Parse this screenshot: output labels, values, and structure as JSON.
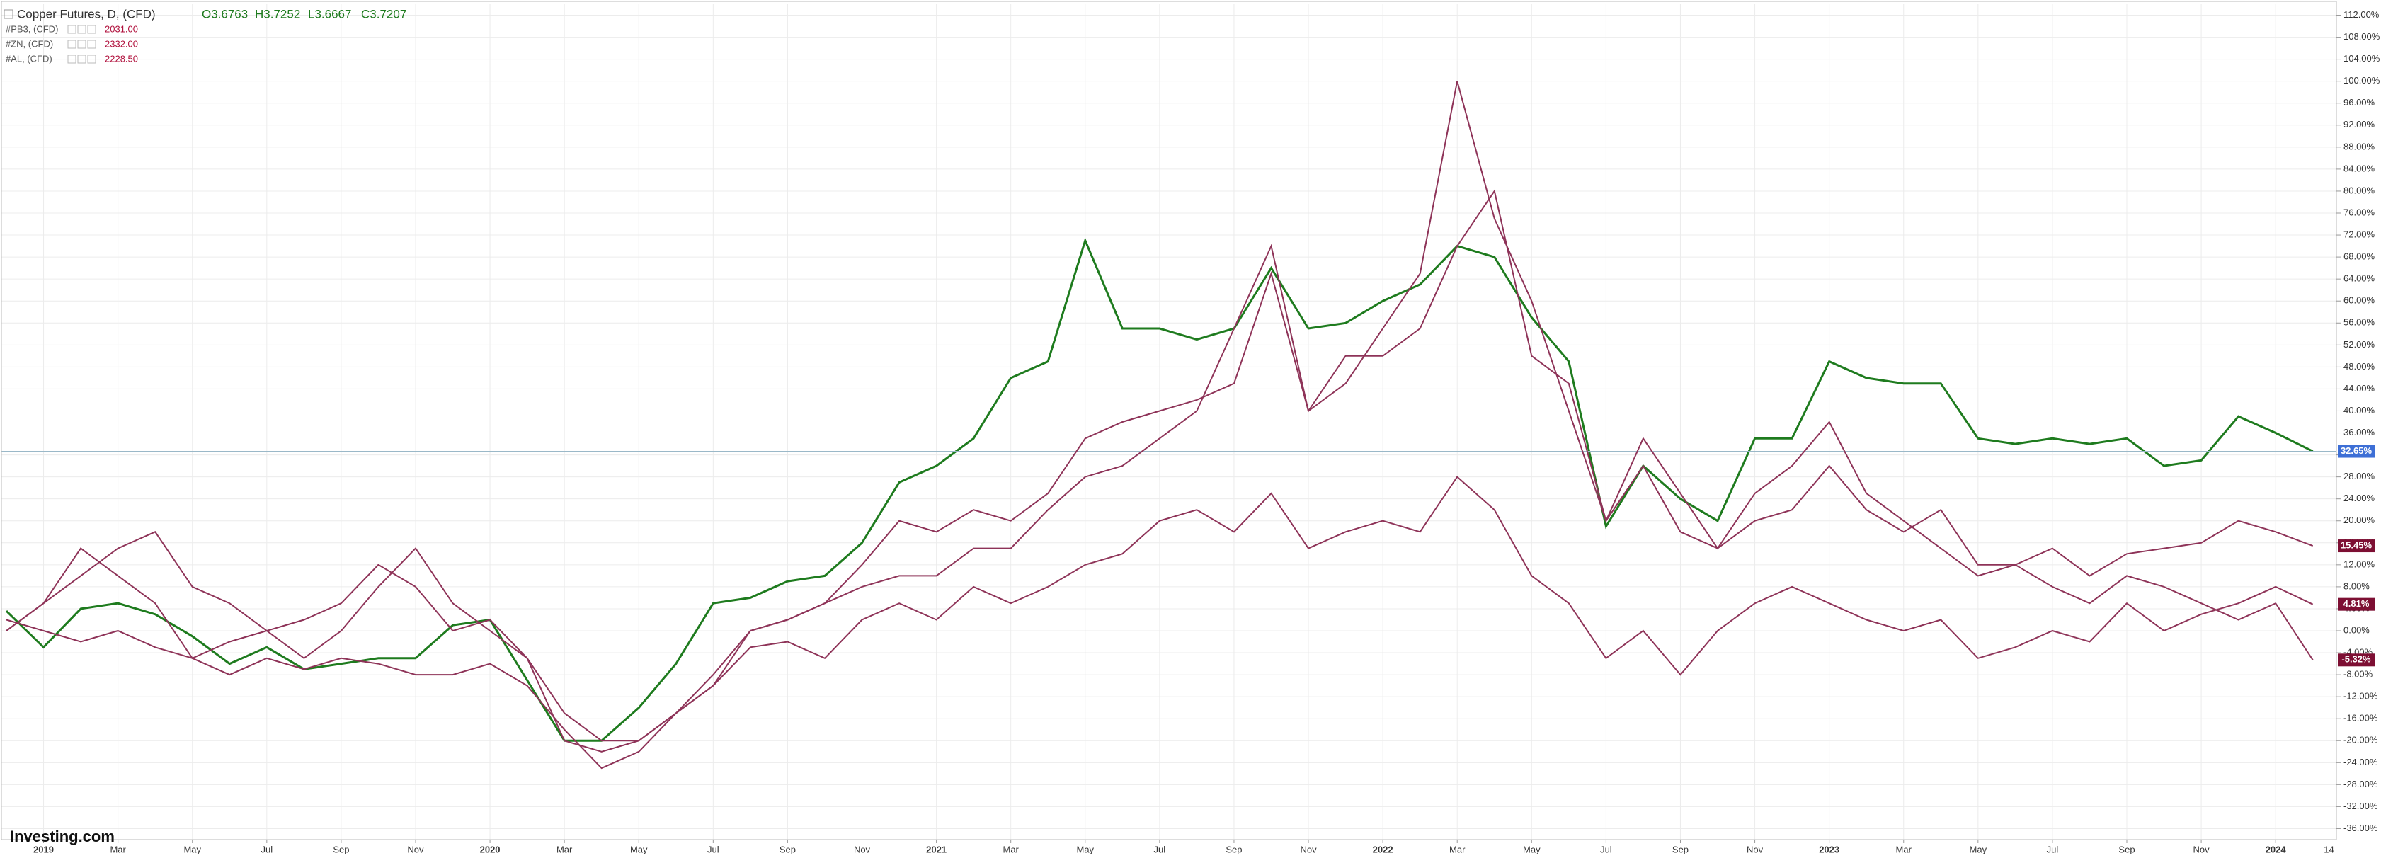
{
  "chart_data": {
    "type": "line",
    "title": "Copper Futures, D, (CFD)",
    "ohlc": [
      "O3.6763",
      "H3.7252",
      "L3.6667",
      "C3.7207"
    ],
    "logo": "Investing.com",
    "x": [
      "2018-12",
      "2019-01",
      "2019-02",
      "2019-03",
      "2019-04",
      "2019-05",
      "2019-06",
      "2019-07",
      "2019-08",
      "2019-09",
      "2019-10",
      "2019-11",
      "2019-12",
      "2020-01",
      "2020-02",
      "2020-03",
      "2020-04",
      "2020-05",
      "2020-06",
      "2020-07",
      "2020-08",
      "2020-09",
      "2020-10",
      "2020-11",
      "2020-12",
      "2021-01",
      "2021-02",
      "2021-03",
      "2021-04",
      "2021-05",
      "2021-06",
      "2021-07",
      "2021-08",
      "2021-09",
      "2021-10",
      "2021-11",
      "2021-12",
      "2022-01",
      "2022-02",
      "2022-03",
      "2022-04",
      "2022-05",
      "2022-06",
      "2022-07",
      "2022-08",
      "2022-09",
      "2022-10",
      "2022-11",
      "2022-12",
      "2023-01",
      "2023-02",
      "2023-03",
      "2023-04",
      "2023-05",
      "2023-06",
      "2023-07",
      "2023-08",
      "2023-09",
      "2023-10",
      "2023-11",
      "2023-12",
      "2024-01",
      "2024-02"
    ],
    "series": [
      {
        "name": "Copper Futures",
        "color": "#1e7b1e",
        "badge_color": "#3d6fd6",
        "last_value_label": "32.65%",
        "values": [
          3.6,
          -3,
          4,
          5,
          3,
          -1,
          -6,
          -3,
          -7,
          -6,
          -5,
          -5,
          1,
          2,
          -9,
          -20,
          -20,
          -14,
          -6,
          5,
          6,
          9,
          10,
          16,
          27,
          30,
          35,
          46,
          49,
          71,
          55,
          55,
          53,
          55,
          66,
          55,
          56,
          60,
          63,
          70,
          68,
          57,
          49,
          19,
          30,
          24,
          20,
          35,
          35,
          49,
          46,
          45,
          45,
          35,
          34,
          35,
          34,
          35,
          30,
          31,
          39,
          36,
          32.65
        ]
      },
      {
        "name": "#PB3, (CFD)",
        "last": "2031.00",
        "color": "#8e3358",
        "badge_color": "#7d0f33",
        "last_value_label": "4.81%",
        "values": [
          0,
          5,
          15,
          10,
          5,
          -5,
          -2,
          0,
          2,
          5,
          12,
          8,
          0,
          2,
          -5,
          -15,
          -20,
          -20,
          -15,
          -10,
          -3,
          -2,
          -5,
          2,
          5,
          2,
          8,
          5,
          8,
          12,
          14,
          20,
          22,
          18,
          25,
          15,
          18,
          20,
          18,
          28,
          22,
          10,
          5,
          -5,
          0,
          -8,
          0,
          5,
          8,
          5,
          2,
          0,
          2,
          -5,
          -3,
          0,
          -2,
          5,
          0,
          3,
          5,
          8,
          4.81
        ]
      },
      {
        "name": "#ZN, (CFD)",
        "last": "2332.00",
        "color": "#8e3358",
        "badge_color": "#7d0f33",
        "last_value_label": "-5.32%",
        "values": [
          0,
          5,
          10,
          15,
          18,
          8,
          5,
          0,
          -5,
          0,
          8,
          15,
          5,
          0,
          -5,
          -20,
          -22,
          -20,
          -15,
          -10,
          0,
          2,
          5,
          12,
          20,
          18,
          22,
          20,
          25,
          35,
          38,
          40,
          42,
          45,
          65,
          40,
          50,
          50,
          55,
          70,
          80,
          50,
          45,
          20,
          35,
          25,
          15,
          25,
          30,
          38,
          25,
          20,
          15,
          10,
          12,
          8,
          5,
          10,
          8,
          5,
          2,
          5,
          -5.32
        ]
      },
      {
        "name": "#AL, (CFD)",
        "last": "2228.50",
        "color": "#8e3358",
        "badge_color": "#7d0f33",
        "last_value_label": "15.45%",
        "values": [
          2,
          0,
          -2,
          0,
          -3,
          -5,
          -8,
          -5,
          -7,
          -5,
          -6,
          -8,
          -8,
          -6,
          -10,
          -18,
          -25,
          -22,
          -15,
          -8,
          0,
          2,
          5,
          8,
          10,
          10,
          15,
          15,
          22,
          28,
          30,
          35,
          40,
          55,
          70,
          40,
          45,
          55,
          65,
          100,
          75,
          60,
          40,
          20,
          30,
          18,
          15,
          20,
          22,
          30,
          22,
          18,
          22,
          12,
          12,
          15,
          10,
          14,
          15,
          16,
          20,
          18,
          15.45
        ]
      }
    ],
    "xlim": [
      "2018-11-27",
      "2024-02-20"
    ],
    "xticks": [
      {
        "value": "2019-01",
        "label": "2019"
      },
      {
        "value": "2019-03",
        "label": "Mar"
      },
      {
        "value": "2019-05",
        "label": "May"
      },
      {
        "value": "2019-07",
        "label": "Jul"
      },
      {
        "value": "2019-09",
        "label": "Sep"
      },
      {
        "value": "2019-11",
        "label": "Nov"
      },
      {
        "value": "2020-01",
        "label": "2020"
      },
      {
        "value": "2020-03",
        "label": "Mar"
      },
      {
        "value": "2020-05",
        "label": "May"
      },
      {
        "value": "2020-07",
        "label": "Jul"
      },
      {
        "value": "2020-09",
        "label": "Sep"
      },
      {
        "value": "2020-11",
        "label": "Nov"
      },
      {
        "value": "2021-01",
        "label": "2021"
      },
      {
        "value": "2021-03",
        "label": "Mar"
      },
      {
        "value": "2021-05",
        "label": "May"
      },
      {
        "value": "2021-07",
        "label": "Jul"
      },
      {
        "value": "2021-09",
        "label": "Sep"
      },
      {
        "value": "2021-11",
        "label": "Nov"
      },
      {
        "value": "2022-01",
        "label": "2022"
      },
      {
        "value": "2022-03",
        "label": "Mar"
      },
      {
        "value": "2022-05",
        "label": "May"
      },
      {
        "value": "2022-07",
        "label": "Jul"
      },
      {
        "value": "2022-09",
        "label": "Sep"
      },
      {
        "value": "2022-11",
        "label": "Nov"
      },
      {
        "value": "2023-01",
        "label": "2023"
      },
      {
        "value": "2023-03",
        "label": "Mar"
      },
      {
        "value": "2023-05",
        "label": "May"
      },
      {
        "value": "2023-07",
        "label": "Jul"
      },
      {
        "value": "2023-09",
        "label": "Sep"
      },
      {
        "value": "2023-11",
        "label": "Nov"
      },
      {
        "value": "2024-01",
        "label": "2024"
      },
      {
        "value": "2024-02-14",
        "label": "14"
      }
    ],
    "ylim": [
      -38,
      114
    ],
    "yticks": [
      {
        "value": 112,
        "label": "112.00%"
      },
      {
        "value": 108,
        "label": "108.00%"
      },
      {
        "value": 104,
        "label": "104.00%"
      },
      {
        "value": 100,
        "label": "100.00%"
      },
      {
        "value": 96,
        "label": "96.00%"
      },
      {
        "value": 92,
        "label": "92.00%"
      },
      {
        "value": 88,
        "label": "88.00%"
      },
      {
        "value": 84,
        "label": "84.00%"
      },
      {
        "value": 80,
        "label": "80.00%"
      },
      {
        "value": 76,
        "label": "76.00%"
      },
      {
        "value": 72,
        "label": "72.00%"
      },
      {
        "value": 68,
        "label": "68.00%"
      },
      {
        "value": 64,
        "label": "64.00%"
      },
      {
        "value": 60,
        "label": "60.00%"
      },
      {
        "value": 56,
        "label": "56.00%"
      },
      {
        "value": 52,
        "label": "52.00%"
      },
      {
        "value": 48,
        "label": "48.00%"
      },
      {
        "value": 44,
        "label": "44.00%"
      },
      {
        "value": 40,
        "label": "40.00%"
      },
      {
        "value": 36,
        "label": "36.00%"
      },
      {
        "value": 32,
        "label": "32.00%"
      },
      {
        "value": 28,
        "label": "28.00%"
      },
      {
        "value": 24,
        "label": "24.00%"
      },
      {
        "value": 20,
        "label": "20.00%"
      },
      {
        "value": 16,
        "label": "16.00%"
      },
      {
        "value": 12,
        "label": "12.00%"
      },
      {
        "value": 8,
        "label": "8.00%"
      },
      {
        "value": 4,
        "label": "4.00%"
      },
      {
        "value": 0,
        "label": "0.00%"
      },
      {
        "value": -4,
        "label": "-4.00%"
      },
      {
        "value": -8,
        "label": "-8.00%"
      },
      {
        "value": -12,
        "label": "-12.00%"
      },
      {
        "value": -16,
        "label": "-16.00%"
      },
      {
        "value": -20,
        "label": "-20.00%"
      },
      {
        "value": -24,
        "label": "-24.00%"
      },
      {
        "value": -28,
        "label": "-28.00%"
      },
      {
        "value": -32,
        "label": "-32.00%"
      },
      {
        "value": -36,
        "label": "-36.00%"
      }
    ],
    "grid": true
  }
}
